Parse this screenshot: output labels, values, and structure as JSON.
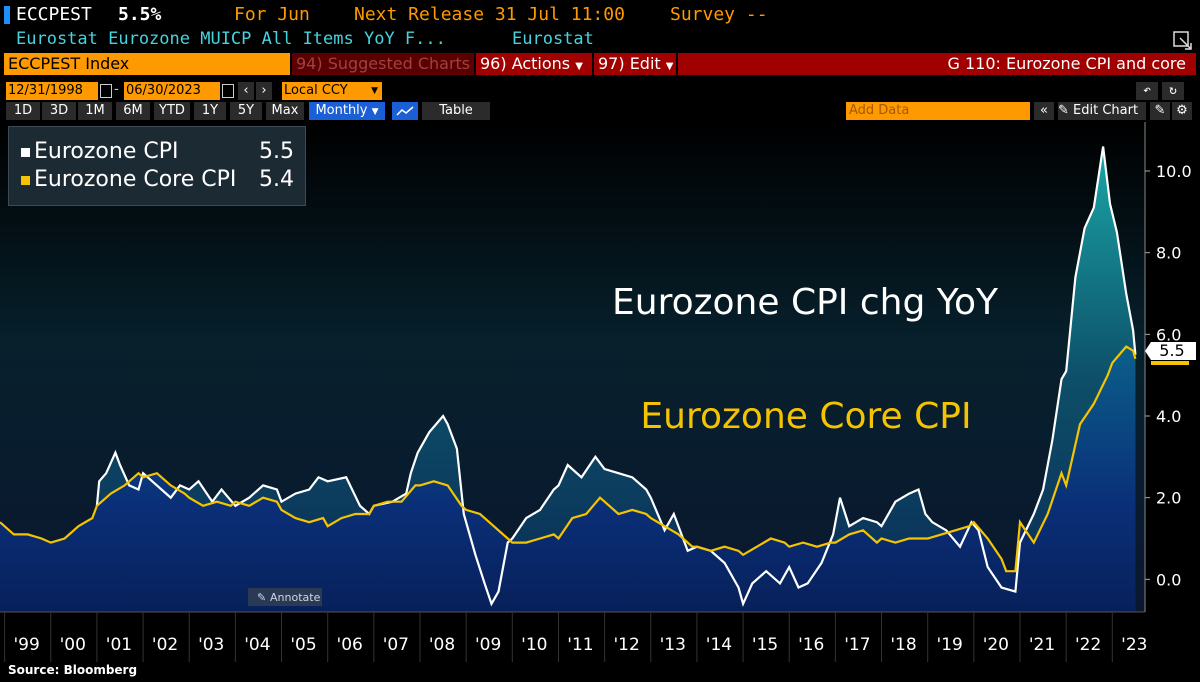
{
  "header": {
    "ticker": "ECCPEST",
    "value": "5.5%",
    "for_label": "For Jun",
    "next_release": "Next Release 31 Jul 11:00",
    "survey": "Survey --",
    "description": "Eurostat Eurozone MUICP All Items YoY F...",
    "source_name": "Eurostat"
  },
  "toolbar": {
    "index_name": "ECCPEST Index",
    "suggested": "94) Suggested Charts",
    "actions": "96) Actions",
    "edit": "97) Edit",
    "chart_title": "G 110: Eurozone CPI and core"
  },
  "controls": {
    "start_date": "12/31/1998",
    "end_date": "06/30/2023",
    "currency": "Local CCY",
    "periods": [
      "1D",
      "3D",
      "1M",
      "6M",
      "YTD",
      "1Y",
      "5Y",
      "Max"
    ],
    "frequency": "Monthly",
    "table_label": "Table",
    "add_data_placeholder": "Add Data",
    "edit_chart": "Edit Chart"
  },
  "footer": {
    "source": "Source: Bloomberg",
    "annotate": "Annotate"
  },
  "colors": {
    "cpi": "#ffffff",
    "core": "#f5c400",
    "accent_orange": "#ff9900",
    "red_bar": "#8b0000"
  },
  "chart_data": {
    "type": "area",
    "ylim": [
      -0.8,
      11.2
    ],
    "yticks": [
      0.0,
      2.0,
      4.0,
      6.0,
      8.0,
      10.0
    ],
    "ytick_labels": [
      "0.0",
      "2.0",
      "4.0",
      "6.0",
      "8.0",
      "10.0"
    ],
    "x_labels": [
      "'99",
      "'00",
      "'01",
      "'02",
      "'03",
      "'04",
      "'05",
      "'06",
      "'07",
      "'08",
      "'09",
      "'10",
      "'11",
      "'12",
      "'13",
      "'14",
      "'15",
      "'16",
      "'17",
      "'18",
      "'19",
      "'20",
      "'21",
      "'22",
      "'23"
    ],
    "x_years": [
      1999,
      2000,
      2001,
      2002,
      2003,
      2004,
      2005,
      2006,
      2007,
      2008,
      2009,
      2010,
      2011,
      2012,
      2013,
      2014,
      2015,
      2016,
      2017,
      2018,
      2019,
      2020,
      2021,
      2022,
      2023
    ],
    "x_range": [
      1998.9,
      2023.6
    ],
    "legend": [
      {
        "name": "Eurozone CPI",
        "last": "5.5"
      },
      {
        "name": "Eurozone Core CPI",
        "last": "5.4"
      }
    ],
    "annotations": [
      "Eurozone CPI chg YoY",
      "Eurozone Core CPI"
    ],
    "last_value_label": "5.5",
    "series": [
      {
        "name": "Eurozone CPI",
        "points": [
          [
            2001.0,
            1.8
          ],
          [
            2001.05,
            2.4
          ],
          [
            2001.2,
            2.6
          ],
          [
            2001.4,
            3.1
          ],
          [
            2001.5,
            2.8
          ],
          [
            2001.7,
            2.3
          ],
          [
            2001.9,
            2.2
          ],
          [
            2002.0,
            2.6
          ],
          [
            2002.3,
            2.3
          ],
          [
            2002.6,
            2.0
          ],
          [
            2002.8,
            2.3
          ],
          [
            2003.0,
            2.2
          ],
          [
            2003.2,
            2.4
          ],
          [
            2003.5,
            1.9
          ],
          [
            2003.7,
            2.2
          ],
          [
            2004.0,
            1.8
          ],
          [
            2004.3,
            2.0
          ],
          [
            2004.6,
            2.3
          ],
          [
            2004.9,
            2.2
          ],
          [
            2005.0,
            1.9
          ],
          [
            2005.3,
            2.1
          ],
          [
            2005.6,
            2.2
          ],
          [
            2005.8,
            2.5
          ],
          [
            2006.0,
            2.4
          ],
          [
            2006.4,
            2.5
          ],
          [
            2006.7,
            1.8
          ],
          [
            2006.9,
            1.6
          ],
          [
            2007.0,
            1.8
          ],
          [
            2007.4,
            1.9
          ],
          [
            2007.7,
            2.1
          ],
          [
            2007.8,
            2.6
          ],
          [
            2007.95,
            3.1
          ],
          [
            2008.2,
            3.6
          ],
          [
            2008.5,
            4.0
          ],
          [
            2008.6,
            3.8
          ],
          [
            2008.8,
            3.2
          ],
          [
            2008.95,
            1.6
          ],
          [
            2009.2,
            0.6
          ],
          [
            2009.4,
            -0.1
          ],
          [
            2009.55,
            -0.6
          ],
          [
            2009.7,
            -0.3
          ],
          [
            2009.9,
            0.9
          ],
          [
            2010.0,
            1.0
          ],
          [
            2010.3,
            1.5
          ],
          [
            2010.6,
            1.7
          ],
          [
            2010.9,
            2.2
          ],
          [
            2011.0,
            2.3
          ],
          [
            2011.2,
            2.8
          ],
          [
            2011.5,
            2.5
          ],
          [
            2011.8,
            3.0
          ],
          [
            2012.0,
            2.7
          ],
          [
            2012.3,
            2.6
          ],
          [
            2012.6,
            2.5
          ],
          [
            2012.9,
            2.2
          ],
          [
            2013.0,
            2.0
          ],
          [
            2013.3,
            1.2
          ],
          [
            2013.5,
            1.6
          ],
          [
            2013.8,
            0.7
          ],
          [
            2014.0,
            0.8
          ],
          [
            2014.3,
            0.7
          ],
          [
            2014.6,
            0.4
          ],
          [
            2014.9,
            -0.2
          ],
          [
            2015.0,
            -0.6
          ],
          [
            2015.2,
            -0.1
          ],
          [
            2015.5,
            0.2
          ],
          [
            2015.8,
            -0.1
          ],
          [
            2016.0,
            0.3
          ],
          [
            2016.2,
            -0.2
          ],
          [
            2016.4,
            -0.1
          ],
          [
            2016.7,
            0.4
          ],
          [
            2016.95,
            1.1
          ],
          [
            2017.1,
            2.0
          ],
          [
            2017.3,
            1.3
          ],
          [
            2017.6,
            1.5
          ],
          [
            2017.9,
            1.4
          ],
          [
            2018.0,
            1.3
          ],
          [
            2018.3,
            1.9
          ],
          [
            2018.6,
            2.1
          ],
          [
            2018.8,
            2.2
          ],
          [
            2018.95,
            1.6
          ],
          [
            2019.1,
            1.4
          ],
          [
            2019.4,
            1.2
          ],
          [
            2019.7,
            0.8
          ],
          [
            2019.95,
            1.4
          ],
          [
            2020.1,
            1.2
          ],
          [
            2020.3,
            0.3
          ],
          [
            2020.6,
            -0.2
          ],
          [
            2020.9,
            -0.3
          ],
          [
            2021.0,
            0.9
          ],
          [
            2021.3,
            1.6
          ],
          [
            2021.5,
            2.2
          ],
          [
            2021.7,
            3.4
          ],
          [
            2021.9,
            4.9
          ],
          [
            2022.0,
            5.1
          ],
          [
            2022.2,
            7.4
          ],
          [
            2022.4,
            8.6
          ],
          [
            2022.6,
            9.1
          ],
          [
            2022.8,
            10.6
          ],
          [
            2022.95,
            9.2
          ],
          [
            2023.1,
            8.5
          ],
          [
            2023.3,
            7.0
          ],
          [
            2023.45,
            6.1
          ],
          [
            2023.5,
            5.5
          ]
        ]
      },
      {
        "name": "Eurozone Core CPI",
        "points": [
          [
            1998.9,
            1.4
          ],
          [
            1999.2,
            1.1
          ],
          [
            1999.5,
            1.1
          ],
          [
            1999.8,
            1.0
          ],
          [
            2000.0,
            0.9
          ],
          [
            2000.3,
            1.0
          ],
          [
            2000.6,
            1.3
          ],
          [
            2000.9,
            1.5
          ],
          [
            2001.0,
            1.8
          ],
          [
            2001.3,
            2.1
          ],
          [
            2001.6,
            2.3
          ],
          [
            2001.9,
            2.6
          ],
          [
            2002.0,
            2.5
          ],
          [
            2002.3,
            2.6
          ],
          [
            2002.6,
            2.3
          ],
          [
            2002.9,
            2.1
          ],
          [
            2003.0,
            2.0
          ],
          [
            2003.3,
            1.8
          ],
          [
            2003.6,
            1.9
          ],
          [
            2003.9,
            1.8
          ],
          [
            2004.0,
            1.9
          ],
          [
            2004.3,
            1.8
          ],
          [
            2004.6,
            2.0
          ],
          [
            2004.9,
            1.9
          ],
          [
            2005.0,
            1.7
          ],
          [
            2005.3,
            1.5
          ],
          [
            2005.6,
            1.4
          ],
          [
            2005.9,
            1.5
          ],
          [
            2006.0,
            1.3
          ],
          [
            2006.3,
            1.5
          ],
          [
            2006.6,
            1.6
          ],
          [
            2006.9,
            1.6
          ],
          [
            2007.0,
            1.8
          ],
          [
            2007.3,
            1.9
          ],
          [
            2007.6,
            1.9
          ],
          [
            2007.9,
            2.3
          ],
          [
            2008.0,
            2.3
          ],
          [
            2008.3,
            2.4
          ],
          [
            2008.6,
            2.3
          ],
          [
            2008.9,
            1.8
          ],
          [
            2009.0,
            1.7
          ],
          [
            2009.3,
            1.6
          ],
          [
            2009.6,
            1.3
          ],
          [
            2009.9,
            1.0
          ],
          [
            2010.0,
            0.9
          ],
          [
            2010.3,
            0.9
          ],
          [
            2010.6,
            1.0
          ],
          [
            2010.9,
            1.1
          ],
          [
            2011.0,
            1.0
          ],
          [
            2011.3,
            1.5
          ],
          [
            2011.6,
            1.6
          ],
          [
            2011.9,
            2.0
          ],
          [
            2012.0,
            1.9
          ],
          [
            2012.3,
            1.6
          ],
          [
            2012.6,
            1.7
          ],
          [
            2012.9,
            1.6
          ],
          [
            2013.0,
            1.5
          ],
          [
            2013.3,
            1.3
          ],
          [
            2013.6,
            1.1
          ],
          [
            2013.9,
            0.8
          ],
          [
            2014.0,
            0.8
          ],
          [
            2014.3,
            0.7
          ],
          [
            2014.6,
            0.8
          ],
          [
            2014.9,
            0.7
          ],
          [
            2015.0,
            0.6
          ],
          [
            2015.3,
            0.8
          ],
          [
            2015.6,
            1.0
          ],
          [
            2015.9,
            0.9
          ],
          [
            2016.0,
            0.8
          ],
          [
            2016.3,
            0.9
          ],
          [
            2016.6,
            0.8
          ],
          [
            2016.9,
            0.9
          ],
          [
            2017.0,
            0.9
          ],
          [
            2017.3,
            1.1
          ],
          [
            2017.6,
            1.2
          ],
          [
            2017.9,
            0.9
          ],
          [
            2018.0,
            1.0
          ],
          [
            2018.3,
            0.9
          ],
          [
            2018.6,
            1.0
          ],
          [
            2018.9,
            1.0
          ],
          [
            2019.0,
            1.0
          ],
          [
            2019.3,
            1.1
          ],
          [
            2019.6,
            1.2
          ],
          [
            2019.9,
            1.3
          ],
          [
            2020.0,
            1.4
          ],
          [
            2020.3,
            1.0
          ],
          [
            2020.6,
            0.5
          ],
          [
            2020.7,
            0.2
          ],
          [
            2020.9,
            0.2
          ],
          [
            2021.0,
            1.4
          ],
          [
            2021.3,
            0.9
          ],
          [
            2021.6,
            1.6
          ],
          [
            2021.9,
            2.6
          ],
          [
            2022.0,
            2.3
          ],
          [
            2022.3,
            3.8
          ],
          [
            2022.6,
            4.3
          ],
          [
            2022.9,
            5.0
          ],
          [
            2023.0,
            5.3
          ],
          [
            2023.3,
            5.7
          ],
          [
            2023.45,
            5.6
          ],
          [
            2023.5,
            5.4
          ]
        ]
      }
    ]
  }
}
